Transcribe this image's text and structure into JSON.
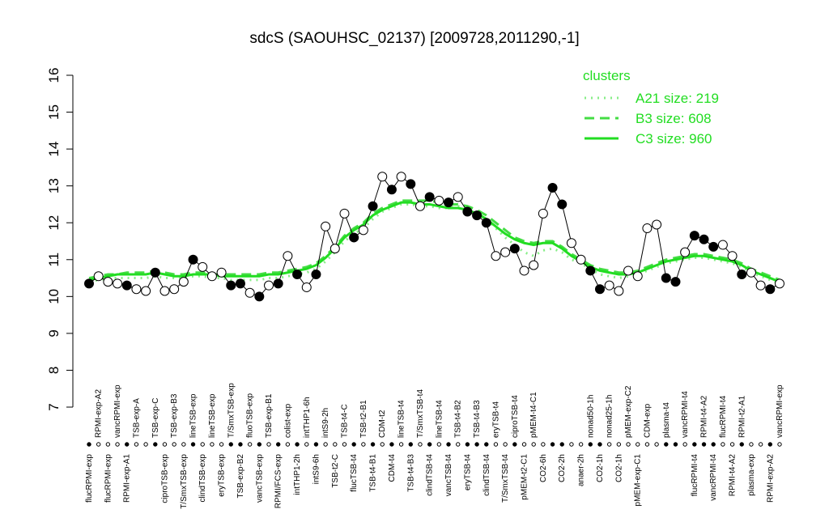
{
  "chart_data": {
    "type": "line",
    "title": "sdcS (SAOUHSC_02137) [2009728,2011290,-1]",
    "categories": [
      "flucRPMI-exp",
      "RPMI-exp-A2",
      "flucRPMI-exp",
      "vancRPMI-exp",
      "RPMI-exp-A1",
      "TSB-exp-A",
      null,
      "TSB-exp-C",
      "ciproTSB-exp",
      "TSB-exp-B3",
      "T/SmxTSB-exp",
      "lineTSB-exp",
      "clindTSB-exp",
      "lineTSB-exp",
      "eryTSB-exp",
      "T/SmxTSB-exp",
      "TSB-exp-B2",
      "fluoTSB-exp",
      "vancTSB-exp",
      "TSB-exp-B1",
      "RPMI/FCS-exp",
      "colist-exp",
      "intTHP1-2h",
      "intTHP1-6h",
      "intS9-6h",
      "intS9-2h",
      "TSB-t2-C",
      "TSB-t4-C",
      "flucTSB-t4",
      "TSB-t2-B1",
      "TSB-t4-B1",
      "CDM-t2",
      "CDM-t4",
      "lineTSB-t4",
      "TSB-t4-B3",
      "T/SmxTSB-t4",
      "clindTSB-t4",
      "lineTSB-t4",
      "vancTSB-t4",
      "TSB-t4-B2",
      "eryTSB-t4",
      "TSB-t4-B3",
      "clindTSB-t4",
      "eryTSB-t4",
      "T/SmxTSB-t4",
      "ciproTSB-t4",
      "pMEM-t2-C1",
      "pMEM-t4-C1",
      "CO2-6h",
      null,
      "CO2-2h",
      null,
      "anaer-2h",
      "nonad50-1h",
      "CO2-1h",
      "nonad25-1h",
      "CO2-1h",
      "pMEM-exp-C2",
      "pMEM-exp-C1",
      "CDM-exp",
      null,
      "plasma-t4",
      null,
      "vancRPMI-t4",
      "flucRPMI-t4",
      "RPMI-t4-A2",
      "vancRPMI-t4",
      "flucRPMI-t4",
      "RPMI-t4-A2",
      "RPMI-t2-A1",
      "plasma-exp",
      null,
      "RPMI-exp-A2",
      "vancRPMI-exp"
    ],
    "values": [
      10.35,
      10.55,
      10.4,
      10.35,
      10.3,
      10.2,
      10.15,
      10.65,
      10.15,
      10.2,
      10.4,
      11.0,
      10.8,
      10.55,
      10.65,
      10.3,
      10.35,
      10.1,
      10.0,
      10.3,
      10.35,
      11.1,
      10.6,
      10.25,
      10.6,
      11.9,
      11.3,
      12.25,
      11.6,
      11.8,
      12.45,
      13.25,
      12.9,
      13.25,
      13.05,
      12.45,
      12.7,
      12.6,
      12.55,
      12.7,
      12.3,
      12.2,
      12.0,
      11.1,
      11.2,
      11.3,
      10.7,
      10.85,
      12.25,
      12.95,
      12.5,
      11.45,
      11.0,
      10.7,
      10.2,
      10.3,
      10.15,
      10.7,
      10.55,
      11.85,
      11.95,
      10.5,
      10.4,
      11.2,
      11.65,
      11.55,
      11.35,
      11.4,
      11.1,
      10.6,
      10.65,
      10.3,
      10.2,
      10.35
    ],
    "filled": [
      true,
      false,
      false,
      false,
      true,
      false,
      false,
      true,
      false,
      false,
      false,
      true,
      false,
      false,
      false,
      true,
      true,
      false,
      true,
      false,
      true,
      false,
      true,
      false,
      true,
      false,
      false,
      false,
      true,
      false,
      true,
      false,
      true,
      false,
      true,
      false,
      true,
      false,
      true,
      false,
      true,
      true,
      true,
      false,
      false,
      true,
      false,
      false,
      false,
      true,
      true,
      false,
      false,
      true,
      true,
      false,
      false,
      false,
      false,
      false,
      false,
      true,
      true,
      false,
      true,
      true,
      true,
      false,
      false,
      true,
      false,
      false,
      true,
      false
    ],
    "color": "#000000",
    "series": [
      {
        "name": "A21 size: 219",
        "style": "dotted",
        "color": "#88ee88",
        "values": [
          10.4,
          10.45,
          10.5,
          10.5,
          10.5,
          10.5,
          10.5,
          10.55,
          10.5,
          10.5,
          10.5,
          10.55,
          10.55,
          10.5,
          10.5,
          10.45,
          10.45,
          10.45,
          10.45,
          10.5,
          10.5,
          10.55,
          10.6,
          10.65,
          10.75,
          10.95,
          11.2,
          11.5,
          11.7,
          11.85,
          12.1,
          12.3,
          12.4,
          12.5,
          12.5,
          12.45,
          12.45,
          12.4,
          12.4,
          12.45,
          12.4,
          12.3,
          12.1,
          11.85,
          11.6,
          11.4,
          11.2,
          11.1,
          11.25,
          11.3,
          11.2,
          11.0,
          10.9,
          10.75,
          10.6,
          10.55,
          10.5,
          10.55,
          10.6,
          10.7,
          10.8,
          10.9,
          10.95,
          11.0,
          11.05,
          11.05,
          11.0,
          10.95,
          10.9,
          10.8,
          10.65,
          10.55,
          10.45,
          10.35
        ]
      },
      {
        "name": "B3 size: 608",
        "style": "dashed",
        "color": "#44dd44",
        "values": [
          10.5,
          10.55,
          10.6,
          10.6,
          10.65,
          10.65,
          10.65,
          10.7,
          10.65,
          10.6,
          10.6,
          10.65,
          10.65,
          10.6,
          10.6,
          10.6,
          10.6,
          10.6,
          10.6,
          10.65,
          10.65,
          10.7,
          10.75,
          10.8,
          10.9,
          11.1,
          11.35,
          11.65,
          11.85,
          12.0,
          12.25,
          12.4,
          12.5,
          12.6,
          12.6,
          12.6,
          12.6,
          12.55,
          12.5,
          12.5,
          12.45,
          12.35,
          12.2,
          12.0,
          11.8,
          11.6,
          11.5,
          11.45,
          11.5,
          11.5,
          11.35,
          11.15,
          11.0,
          10.85,
          10.75,
          10.7,
          10.65,
          10.65,
          10.7,
          10.8,
          10.9,
          11.0,
          11.05,
          11.1,
          11.15,
          11.15,
          11.1,
          11.05,
          11.0,
          10.9,
          10.75,
          10.65,
          10.55,
          10.45
        ]
      },
      {
        "name": "C3 size: 960",
        "style": "solid",
        "color": "#22dd22",
        "values": [
          10.45,
          10.5,
          10.55,
          10.6,
          10.6,
          10.6,
          10.6,
          10.65,
          10.6,
          10.55,
          10.55,
          10.6,
          10.6,
          10.6,
          10.55,
          10.55,
          10.55,
          10.55,
          10.55,
          10.6,
          10.6,
          10.65,
          10.7,
          10.75,
          10.85,
          11.05,
          11.3,
          11.6,
          11.8,
          11.95,
          12.2,
          12.35,
          12.45,
          12.55,
          12.55,
          12.5,
          12.5,
          12.45,
          12.4,
          12.4,
          12.35,
          12.25,
          12.1,
          11.9,
          11.7,
          11.55,
          11.45,
          11.4,
          11.45,
          11.45,
          11.3,
          11.1,
          10.95,
          10.8,
          10.7,
          10.65,
          10.6,
          10.6,
          10.65,
          10.75,
          10.85,
          10.95,
          11.0,
          11.05,
          11.1,
          11.1,
          11.05,
          11.0,
          10.95,
          10.85,
          10.7,
          10.6,
          10.5,
          10.4
        ]
      }
    ],
    "legend_title": "clusters",
    "legend": "top-right",
    "ylim": [
      7,
      16
    ],
    "yticks": [
      7,
      8,
      9,
      10,
      11,
      12,
      13,
      14,
      15,
      16
    ]
  }
}
